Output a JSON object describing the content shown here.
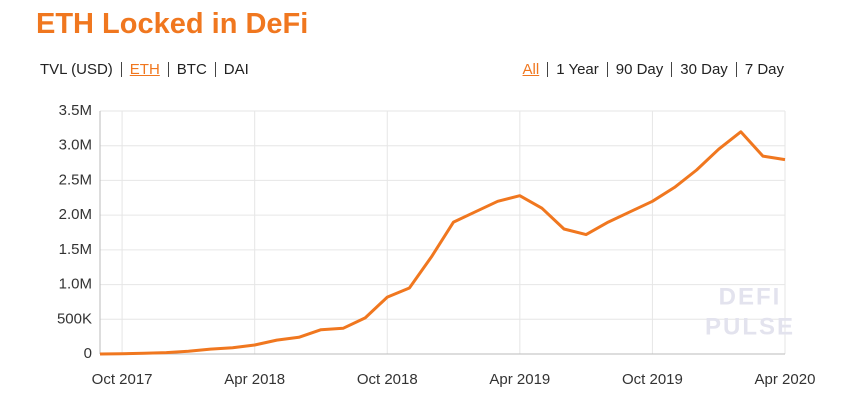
{
  "chart_data": {
    "type": "line",
    "title": "ETH Locked in DeFi",
    "unit_tabs": {
      "items": [
        "TVL (USD)",
        "ETH",
        "BTC",
        "DAI"
      ],
      "active": 1
    },
    "range_tabs": {
      "items": [
        "All",
        "1 Year",
        "90 Day",
        "30 Day",
        "7 Day"
      ],
      "active": 0
    },
    "active_color": "#f0771f",
    "watermark": [
      "DEFI",
      "PULSE"
    ],
    "x": [
      "2017-09",
      "2017-10",
      "2017-11",
      "2017-12",
      "2018-01",
      "2018-02",
      "2018-03",
      "2018-04",
      "2018-05",
      "2018-06",
      "2018-07",
      "2018-08",
      "2018-09",
      "2018-10",
      "2018-11",
      "2018-12",
      "2019-01",
      "2019-02",
      "2019-03",
      "2019-04",
      "2019-05",
      "2019-06",
      "2019-07",
      "2019-08",
      "2019-09",
      "2019-10",
      "2019-11",
      "2019-12",
      "2020-01",
      "2020-02",
      "2020-03",
      "2020-04"
    ],
    "series": [
      {
        "name": "ETH",
        "color": "#f0771f",
        "values": [
          0,
          5000,
          10000,
          20000,
          40000,
          70000,
          90000,
          130000,
          200000,
          240000,
          350000,
          370000,
          520000,
          820000,
          950000,
          1400000,
          1900000,
          2050000,
          2200000,
          2280000,
          2100000,
          1800000,
          1720000,
          1900000,
          2050000,
          2200000,
          2400000,
          2650000,
          2950000,
          3200000,
          2850000,
          2800000
        ]
      }
    ],
    "xlim": [
      "2017-09",
      "2020-04"
    ],
    "xticks": [
      {
        "value": "2017-10",
        "label": "Oct 2017"
      },
      {
        "value": "2018-04",
        "label": "Apr 2018"
      },
      {
        "value": "2018-10",
        "label": "Oct 2018"
      },
      {
        "value": "2019-04",
        "label": "Apr 2019"
      },
      {
        "value": "2019-10",
        "label": "Oct 2019"
      },
      {
        "value": "2020-04",
        "label": "Apr 2020"
      }
    ],
    "ylim": [
      0,
      3500000
    ],
    "yticks": [
      0,
      {
        "value": 500000,
        "label": "500K"
      },
      {
        "value": 1000000,
        "label": "1.0M"
      },
      {
        "value": 1500000,
        "label": "1.5M"
      },
      {
        "value": 2000000,
        "label": "2.0M"
      },
      {
        "value": 2500000,
        "label": "2.5M"
      },
      {
        "value": 3000000,
        "label": "3.0M"
      },
      {
        "value": 3500000,
        "label": "3.5M"
      }
    ],
    "grid": true
  }
}
